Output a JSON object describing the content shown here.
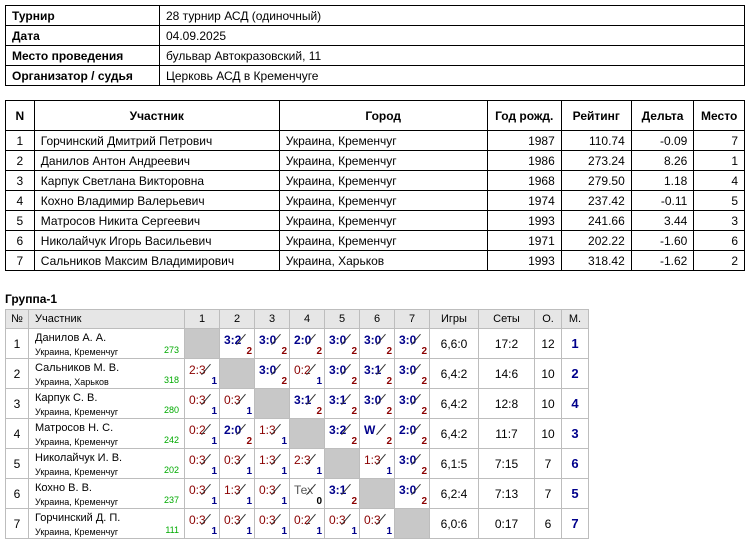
{
  "info": [
    {
      "key": "Турнир",
      "value": "28 турнир АСД (одиночный)"
    },
    {
      "key": "Дата",
      "value": "04.09.2025"
    },
    {
      "key": "Место проведения",
      "value": "бульвар Автокразовский, 11"
    },
    {
      "key": "Организатор / судья",
      "value": "Церковь АСД в Кременчуге"
    }
  ],
  "participants": {
    "headers": [
      "N",
      "Участник",
      "Город",
      "Год рожд.",
      "Рейтинг",
      "Дельта",
      "Место"
    ],
    "rows": [
      [
        "1",
        "Горчинский Дмитрий Петрович",
        "Украина, Кременчуг",
        "1987",
        "110.74",
        "-0.09",
        "7"
      ],
      [
        "2",
        "Данилов Антон Андреевич",
        "Украина, Кременчуг",
        "1986",
        "273.24",
        "8.26",
        "1"
      ],
      [
        "3",
        "Карпук Светлана Викторовна",
        "Украина, Кременчуг",
        "1968",
        "279.50",
        "1.18",
        "4"
      ],
      [
        "4",
        "Кохно Владимир Валерьевич",
        "Украина, Кременчуг",
        "1974",
        "237.42",
        "-0.11",
        "5"
      ],
      [
        "5",
        "Матросов Никита Сергеевич",
        "Украина, Кременчуг",
        "1993",
        "241.66",
        "3.44",
        "3"
      ],
      [
        "6",
        "Николайчук Игорь Васильевич",
        "Украина, Кременчуг",
        "1971",
        "202.22",
        "-1.60",
        "6"
      ],
      [
        "7",
        "Сальников Максим Владимирович",
        "Украина, Харьков",
        "1993",
        "318.42",
        "-1.62",
        "2"
      ]
    ]
  },
  "group": {
    "title": "Группа-1",
    "headers": [
      "№",
      "Участник",
      "1",
      "2",
      "3",
      "4",
      "5",
      "6",
      "7",
      "Игры",
      "Сеты",
      "О.",
      "М."
    ],
    "rows": [
      {
        "no": "1",
        "name": "Данилов А. А.",
        "city": "Украина, Кременчуг",
        "rating": "273",
        "cells": [
          null,
          {
            "s": "3:2",
            "p": "2",
            "r": "win"
          },
          {
            "s": "3:0",
            "p": "2",
            "r": "win"
          },
          {
            "s": "2:0",
            "p": "2",
            "r": "win"
          },
          {
            "s": "3:0",
            "p": "2",
            "r": "win"
          },
          {
            "s": "3:0",
            "p": "2",
            "r": "win"
          },
          {
            "s": "3:0",
            "p": "2",
            "r": "win"
          }
        ],
        "games": "6,6:0",
        "sets": "17:2",
        "points": "12",
        "place": "1"
      },
      {
        "no": "2",
        "name": "Сальников М. В.",
        "city": "Украина, Харьков",
        "rating": "318",
        "cells": [
          {
            "s": "2:3",
            "p": "1",
            "r": "loss"
          },
          null,
          {
            "s": "3:0",
            "p": "2",
            "r": "win"
          },
          {
            "s": "0:2",
            "p": "1",
            "r": "loss"
          },
          {
            "s": "3:0",
            "p": "2",
            "r": "win"
          },
          {
            "s": "3:1",
            "p": "2",
            "r": "win"
          },
          {
            "s": "3:0",
            "p": "2",
            "r": "win"
          }
        ],
        "games": "6,4:2",
        "sets": "14:6",
        "points": "10",
        "place": "2"
      },
      {
        "no": "3",
        "name": "Карпук С. В.",
        "city": "Украина, Кременчуг",
        "rating": "280",
        "cells": [
          {
            "s": "0:3",
            "p": "1",
            "r": "loss"
          },
          {
            "s": "0:3",
            "p": "1",
            "r": "loss"
          },
          null,
          {
            "s": "3:1",
            "p": "2",
            "r": "win"
          },
          {
            "s": "3:1",
            "p": "2",
            "r": "win"
          },
          {
            "s": "3:0",
            "p": "2",
            "r": "win"
          },
          {
            "s": "3:0",
            "p": "2",
            "r": "win"
          }
        ],
        "games": "6,4:2",
        "sets": "12:8",
        "points": "10",
        "place": "4"
      },
      {
        "no": "4",
        "name": "Матросов Н. С.",
        "city": "Украина, Кременчуг",
        "rating": "242",
        "cells": [
          {
            "s": "0:2",
            "p": "1",
            "r": "loss"
          },
          {
            "s": "2:0",
            "p": "2",
            "r": "win"
          },
          {
            "s": "1:3",
            "p": "1",
            "r": "loss"
          },
          null,
          {
            "s": "3:2",
            "p": "2",
            "r": "win"
          },
          {
            "s": "W",
            "p": "2",
            "r": "win"
          },
          {
            "s": "2:0",
            "p": "2",
            "r": "win"
          }
        ],
        "games": "6,4:2",
        "sets": "11:7",
        "points": "10",
        "place": "3"
      },
      {
        "no": "5",
        "name": "Николайчук И. В.",
        "city": "Украина, Кременчуг",
        "rating": "202",
        "cells": [
          {
            "s": "0:3",
            "p": "1",
            "r": "loss"
          },
          {
            "s": "0:3",
            "p": "1",
            "r": "loss"
          },
          {
            "s": "1:3",
            "p": "1",
            "r": "loss"
          },
          {
            "s": "2:3",
            "p": "1",
            "r": "loss"
          },
          null,
          {
            "s": "1:3",
            "p": "1",
            "r": "loss"
          },
          {
            "s": "3:0",
            "p": "2",
            "r": "win"
          }
        ],
        "games": "6,1:5",
        "sets": "7:15",
        "points": "7",
        "place": "6"
      },
      {
        "no": "6",
        "name": "Кохно В. В.",
        "city": "Украина, Кременчуг",
        "rating": "237",
        "cells": [
          {
            "s": "0:3",
            "p": "1",
            "r": "loss"
          },
          {
            "s": "1:3",
            "p": "1",
            "r": "loss"
          },
          {
            "s": "0:3",
            "p": "1",
            "r": "loss"
          },
          {
            "s": "Тех",
            "p": "0",
            "r": "forf"
          },
          {
            "s": "3:1",
            "p": "2",
            "r": "win"
          },
          null,
          {
            "s": "3:0",
            "p": "2",
            "r": "win"
          }
        ],
        "games": "6,2:4",
        "sets": "7:13",
        "points": "7",
        "place": "5"
      },
      {
        "no": "7",
        "name": "Горчинский Д. П.",
        "city": "Украина, Кременчуг",
        "rating": "111",
        "cells": [
          {
            "s": "0:3",
            "p": "1",
            "r": "loss"
          },
          {
            "s": "0:3",
            "p": "1",
            "r": "loss"
          },
          {
            "s": "0:3",
            "p": "1",
            "r": "loss"
          },
          {
            "s": "0:2",
            "p": "1",
            "r": "loss"
          },
          {
            "s": "0:3",
            "p": "1",
            "r": "loss"
          },
          {
            "s": "0:3",
            "p": "1",
            "r": "loss"
          },
          null
        ],
        "games": "6,0:6",
        "sets": "0:17",
        "points": "6",
        "place": "7"
      }
    ]
  }
}
